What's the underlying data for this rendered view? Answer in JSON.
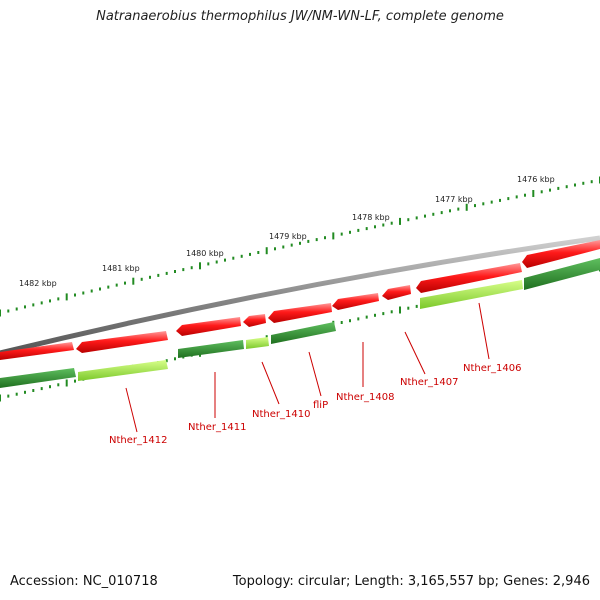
{
  "title": "Natranaerobius thermophilus JW/NM-WN-LF, complete genome",
  "accession": "Accession: NC_010718",
  "topology": "Topology: circular; Length: 3,165,557 bp; Genes: 2,946",
  "kbp_ticks": [
    "1476 kbp",
    "1477 kbp",
    "1478 kbp",
    "1479 kbp",
    "1480 kbp",
    "1481 kbp",
    "1482 kbp"
  ],
  "gene_labels": [
    "Nther_1406",
    "Nther_1407",
    "Nther_1408",
    "fliP",
    "Nther_1410",
    "Nther_1411",
    "Nther_1412"
  ],
  "colors": {
    "backbone": "#888888",
    "reverse_gene": "#e60000",
    "forward_gene_dark": "#2e8b2e",
    "forward_gene_light": "#7bdc3a",
    "tick": "#228b22",
    "label": "#cc0000"
  }
}
